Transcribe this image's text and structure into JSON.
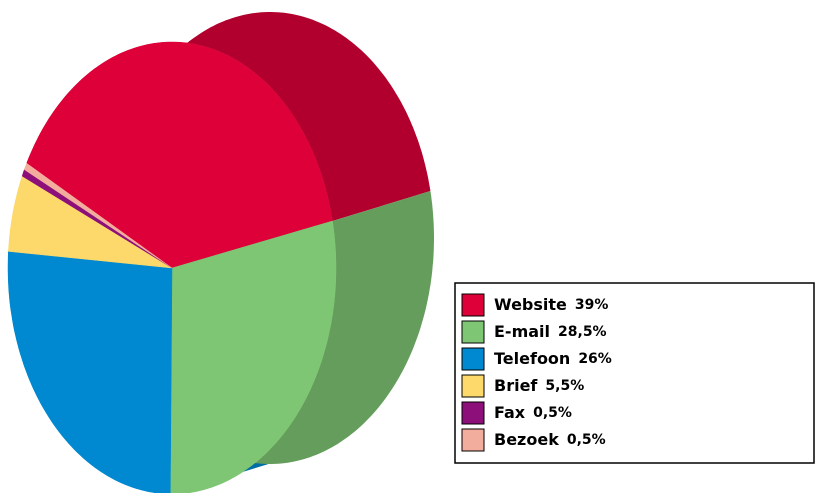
{
  "chart_data": {
    "type": "pie",
    "categories": [
      "Website",
      "E-mail",
      "Telefoon",
      "Brief",
      "Fax",
      "Bezoek"
    ],
    "values": [
      39,
      28.5,
      26,
      5.5,
      0.5,
      0.5
    ],
    "value_labels": [
      "39%",
      "28,5%",
      "26%",
      "5,5%",
      "0,5%",
      "0,5%"
    ],
    "colors": [
      "#de0039",
      "#7ec673",
      "#0089d0",
      "#fcd96a",
      "#8c0f7a",
      "#f3ad9c"
    ]
  }
}
